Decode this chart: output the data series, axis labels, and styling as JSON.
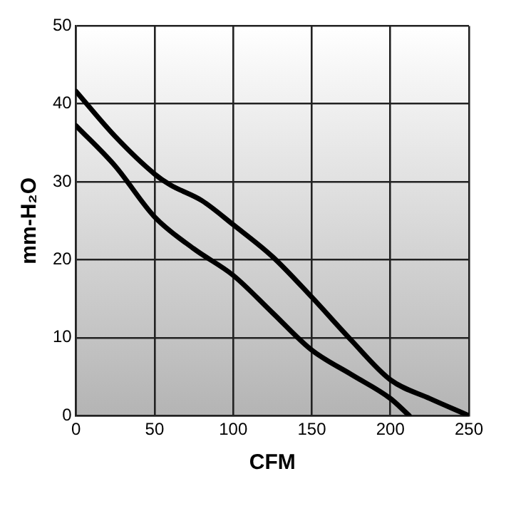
{
  "chart_data": {
    "type": "line",
    "xlabel": "CFM",
    "ylabel": "mm-H₂O",
    "xlim": [
      0,
      250
    ],
    "ylim": [
      0,
      50
    ],
    "xticks": [
      0,
      50,
      100,
      150,
      200,
      250
    ],
    "yticks": [
      0,
      10,
      20,
      30,
      40,
      50
    ],
    "grid": true,
    "legend": false,
    "marker": "none",
    "line_style": "solid",
    "series": [
      {
        "color": "#000000",
        "x": [
          0,
          25,
          50,
          60,
          80,
          100,
          125,
          150,
          175,
          200,
          225,
          250
        ],
        "values": [
          41.6,
          35.8,
          31,
          29.6,
          27.6,
          24.5,
          20.4,
          15.2,
          9.7,
          4.6,
          2.2,
          0
        ]
      },
      {
        "color": "#000000",
        "x": [
          0,
          25,
          50,
          75,
          100,
          125,
          150,
          175,
          200,
          212
        ],
        "values": [
          37.2,
          32,
          25.5,
          21.4,
          18,
          13.2,
          8.4,
          5.3,
          2.2,
          0
        ]
      }
    ]
  }
}
